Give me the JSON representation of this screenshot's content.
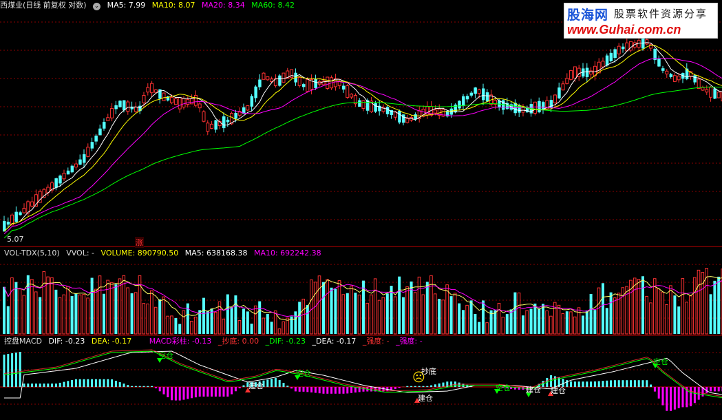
{
  "price_header": {
    "title": "西煤业(日线 前复权 对数)",
    "ma5": "MA5: 7.99",
    "ma10": "MA10: 8.07",
    "ma20": "MA20: 8.34",
    "ma60": "MA60: 8.42"
  },
  "price_panel": {
    "low_label": "5.07",
    "zhang_marker": "涨"
  },
  "volume_header": {
    "title": "VOL-TDX(5,10)",
    "vvol": "VVOL: -",
    "volume": "VOLUME: 890790.50",
    "ma5": "MA5: 638168.38",
    "ma10": "MA10: 692242.38"
  },
  "macd_header": {
    "title": "控盘MACD",
    "dif": "DIF: -0.23",
    "dea": "DEA: -0.17",
    "macd": "MACD彩柱: -0.13",
    "chaodi": "_抄底: 0.00",
    "dif2": "_DIF: -0.23",
    "dea2": "_DEA: -0.17",
    "qiangdu1": "_强度: -",
    "qiangdu2": "_强度: -"
  },
  "macd_markers": {
    "kongcang": "空仓",
    "jiancang": "建仓",
    "chaodi": "抄底"
  },
  "watermark": {
    "logo": "股海网",
    "slogan": "股票软件资源分享",
    "url": "www.Guhai.com.cn"
  },
  "colors": {
    "up": "#ff3232",
    "down": "#54ffff",
    "ma5": "#ffffff",
    "ma10": "#ffff00",
    "ma20": "#ff00ff",
    "ma60": "#00ff00",
    "grid": "#8b0000"
  }
}
